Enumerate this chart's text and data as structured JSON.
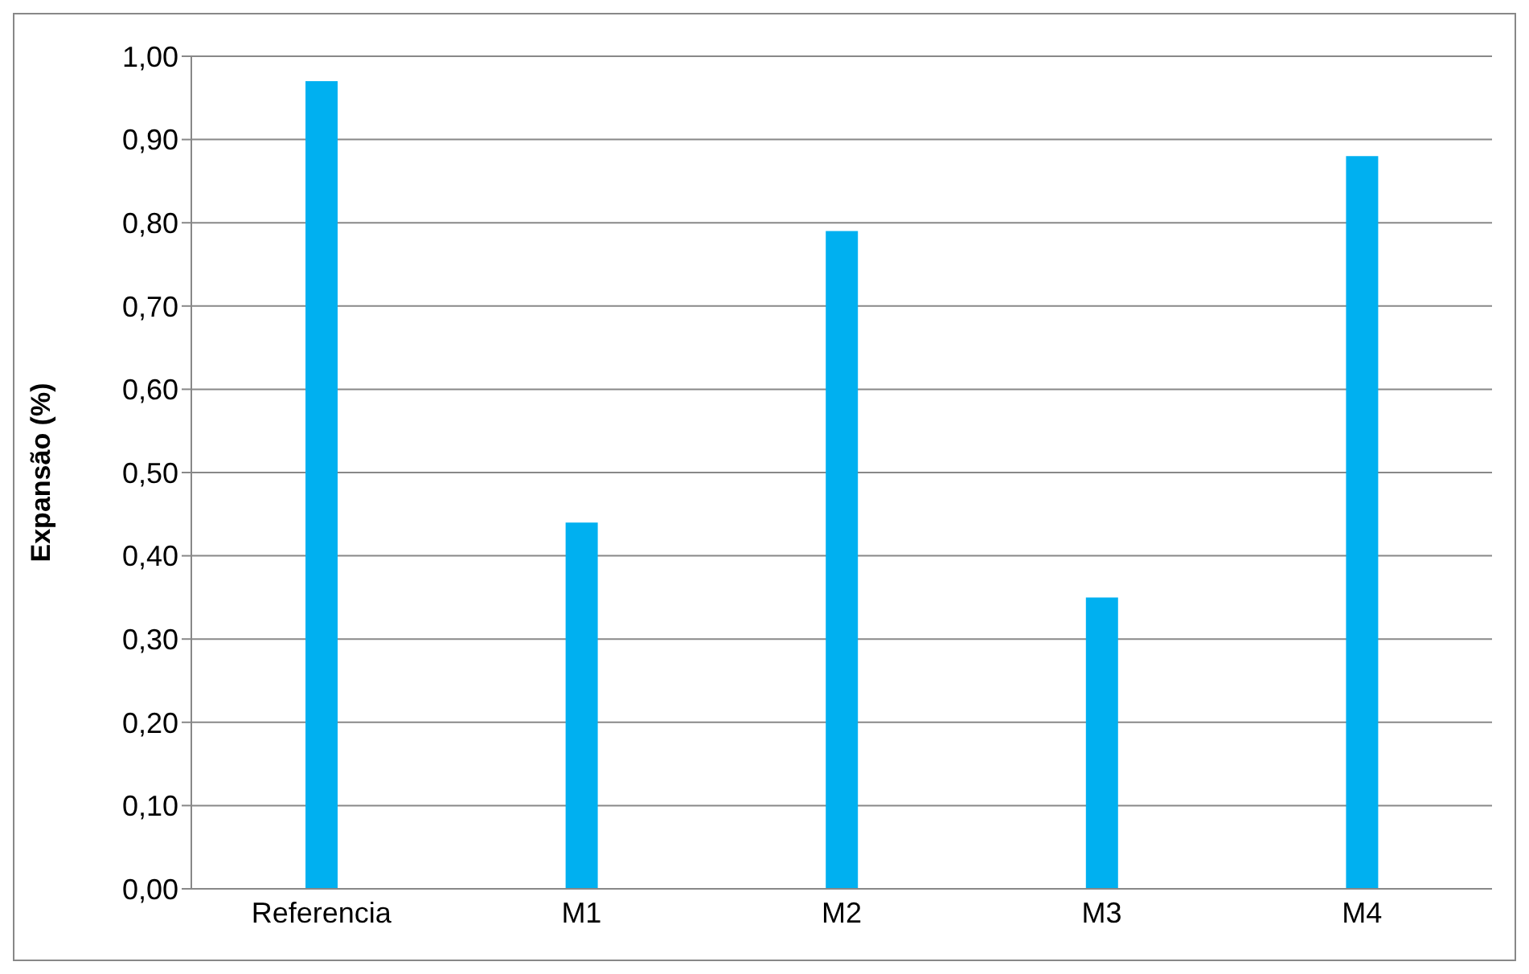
{
  "chart_data": {
    "type": "bar",
    "ylabel": "Expansão (%)",
    "categories": [
      "Referencia",
      "M1",
      "M2",
      "M3",
      "M4"
    ],
    "values": [
      0.97,
      0.44,
      0.79,
      0.35,
      0.88
    ],
    "color": "#00b0f0",
    "ylim": [
      0,
      1
    ],
    "yticks": [
      {
        "value": 0,
        "label": "0,00"
      },
      {
        "value": 0.1,
        "label": "0,10"
      },
      {
        "value": 0.2,
        "label": "0,20"
      },
      {
        "value": 0.3,
        "label": "0,30"
      },
      {
        "value": 0.4,
        "label": "0,40"
      },
      {
        "value": 0.5,
        "label": "0,50"
      },
      {
        "value": 0.6,
        "label": "0,60"
      },
      {
        "value": 0.7,
        "label": "0,70"
      },
      {
        "value": 0.8,
        "label": "0,80"
      },
      {
        "value": 0.9,
        "label": "0,90"
      },
      {
        "value": 1,
        "label": "1,00"
      }
    ],
    "grid": "y"
  }
}
